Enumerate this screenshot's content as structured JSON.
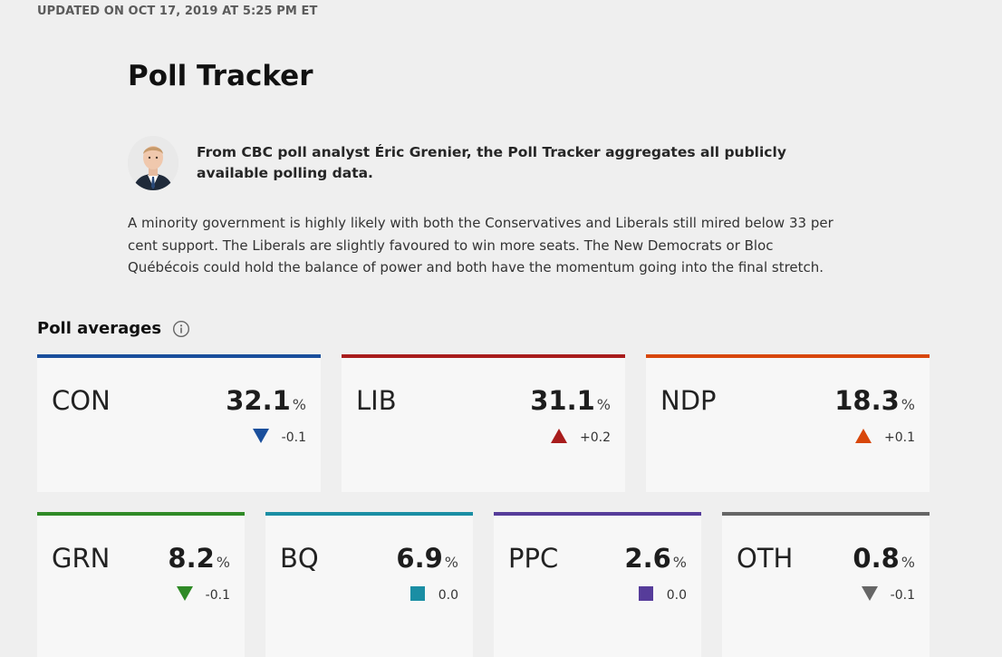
{
  "header": {
    "updated": "UPDATED ON OCT 17, 2019 AT 5:25 PM ET",
    "title": "Poll Tracker"
  },
  "author": {
    "avatar": "author-avatar",
    "text": "From CBC poll analyst Éric Grenier, the Poll Tracker aggregates all publicly available polling data."
  },
  "summary": "A minority government is highly likely with both the Conservatives and Liberals still mired below 33 per cent support. The Liberals are slightly favoured to win more seats. The New Democrats or Bloc Québécois could hold the balance of power and both have the momentum going into the final stretch.",
  "poll_averages": {
    "title": "Poll averages",
    "info_icon": "info-icon",
    "percent_sign": "%",
    "parties": [
      {
        "code": "CON",
        "value": "32.1",
        "change": "-0.1",
        "direction": "down",
        "color": "#1a4f9c"
      },
      {
        "code": "LIB",
        "value": "31.1",
        "change": "+0.2",
        "direction": "up",
        "color": "#a81c1c"
      },
      {
        "code": "NDP",
        "value": "18.3",
        "change": "+0.1",
        "direction": "up",
        "color": "#d8470b"
      },
      {
        "code": "GRN",
        "value": "8.2",
        "change": "-0.1",
        "direction": "down",
        "color": "#2f8a26"
      },
      {
        "code": "BQ",
        "value": "6.9",
        "change": "0.0",
        "direction": "flat",
        "color": "#1a8ea4"
      },
      {
        "code": "PPC",
        "value": "2.6",
        "change": "0.0",
        "direction": "flat",
        "color": "#563c9a"
      },
      {
        "code": "OTH",
        "value": "0.8",
        "change": "-0.1",
        "direction": "down",
        "color": "#666666"
      }
    ]
  }
}
